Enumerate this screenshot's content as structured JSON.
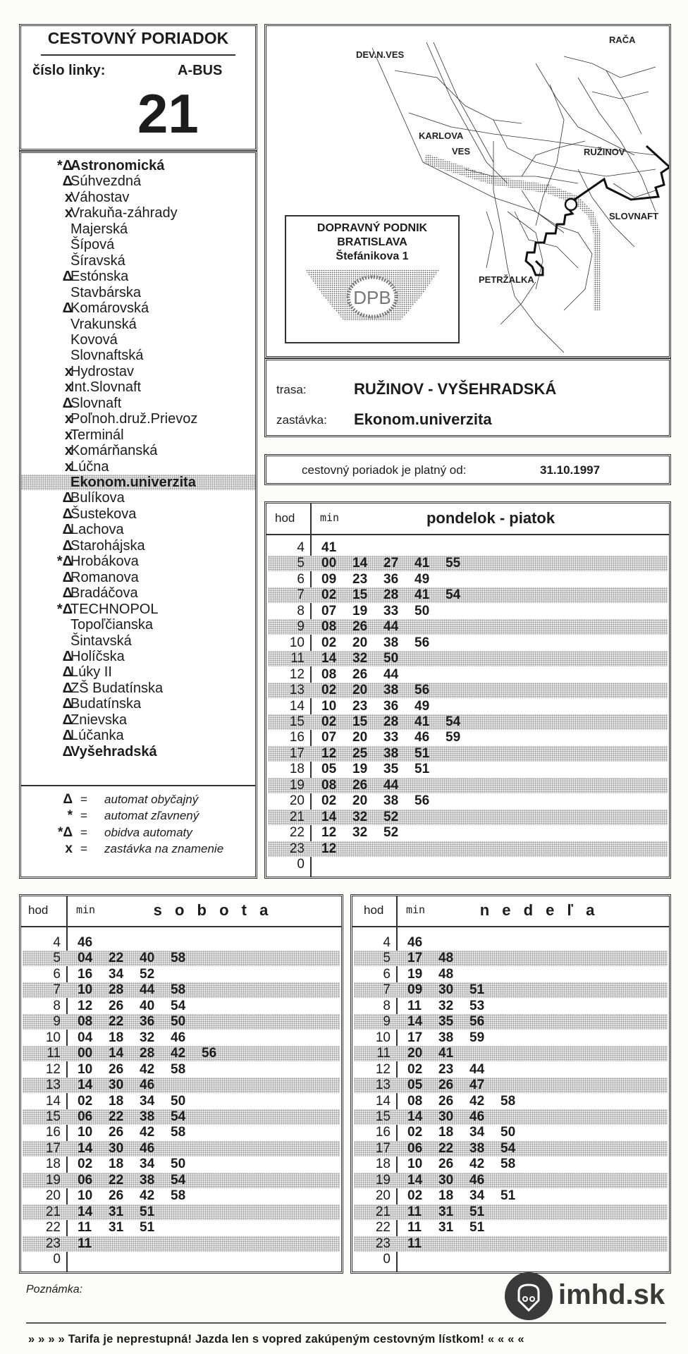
{
  "header": {
    "title": "CESTOVNÝ PORIADOK",
    "line_label": "číslo linky:",
    "line_type": "A-BUS",
    "line_number": "21"
  },
  "stops": [
    {
      "marks": "*Δ",
      "name": "Astronomická",
      "bold": true
    },
    {
      "marks": "Δ",
      "name": "Súhvezdná"
    },
    {
      "marks": "x",
      "name": "Váhostav"
    },
    {
      "marks": "x",
      "name": "Vrakuňa-záhrady"
    },
    {
      "marks": "",
      "name": "Majerská"
    },
    {
      "marks": "",
      "name": "Šípová"
    },
    {
      "marks": "",
      "name": "Šíravská"
    },
    {
      "marks": "Δ",
      "name": "Estónska"
    },
    {
      "marks": "",
      "name": "Stavbárska"
    },
    {
      "marks": "Δ",
      "name": "Komárovská"
    },
    {
      "marks": "",
      "name": "Vrakunská"
    },
    {
      "marks": "",
      "name": "Kovová"
    },
    {
      "marks": "",
      "name": "Slovnaftská"
    },
    {
      "marks": "x",
      "name": "Hydrostav"
    },
    {
      "marks": "x",
      "name": "Int.Slovnaft"
    },
    {
      "marks": "Δ",
      "name": "Slovnaft"
    },
    {
      "marks": "x",
      "name": "Poľnoh.druž.Prievoz"
    },
    {
      "marks": "x",
      "name": "Terminál"
    },
    {
      "marks": "x",
      "name": "Komárňanská"
    },
    {
      "marks": "x",
      "name": "Lúčna"
    },
    {
      "marks": "",
      "name": "Ekonom.univerzita",
      "bold": true,
      "current": true
    },
    {
      "marks": "Δ",
      "name": "Bulíkova"
    },
    {
      "marks": "Δ",
      "name": "Šustekova"
    },
    {
      "marks": "Δ",
      "name": "Lachova"
    },
    {
      "marks": "Δ",
      "name": "Starohájska"
    },
    {
      "marks": "*Δ",
      "name": "Hrobákova"
    },
    {
      "marks": "Δ",
      "name": "Romanova"
    },
    {
      "marks": "Δ",
      "name": "Bradáčova"
    },
    {
      "marks": "*Δ",
      "name": "TECHNOPOL"
    },
    {
      "marks": "",
      "name": "Topoľčianska"
    },
    {
      "marks": "",
      "name": "Šintavská"
    },
    {
      "marks": "Δ",
      "name": "Holíčska"
    },
    {
      "marks": "Δ",
      "name": "Lúky  II"
    },
    {
      "marks": "Δ",
      "name": "ZŠ  Budatínska"
    },
    {
      "marks": "Δ",
      "name": "Budatínska"
    },
    {
      "marks": "Δ",
      "name": "Znievska"
    },
    {
      "marks": "Δ",
      "name": "Lúčanka"
    },
    {
      "marks": "Δ",
      "name": "Vyšehradská",
      "bold": true
    }
  ],
  "legend": [
    {
      "sym": "Δ",
      "text": "automat  obyčajný"
    },
    {
      "sym": "*",
      "text": "automat  zľavnený"
    },
    {
      "sym": "*Δ",
      "text": "obidva  automaty"
    },
    {
      "sym": "x",
      "text": "zastávka  na  znamenie"
    }
  ],
  "legend_eq": "=",
  "map": {
    "labels": [
      "DEV.N.VES",
      "RAČA",
      "KARLOVA",
      "VES",
      "RUŽINOV",
      "SLOVNAFT",
      "PETRŽALKA"
    ],
    "company": [
      "DOPRAVNÝ  PODNIK",
      "BRATISLAVA",
      "Štefánikova  1"
    ],
    "logo_text": "DPB",
    "route_color": "#111111"
  },
  "route": {
    "route_label": "trasa:",
    "route_value": "RUŽINOV  -  VYŠEHRADSKÁ",
    "stop_label": "zastávka:",
    "stop_value": "Ekonom.univerzita"
  },
  "validity": {
    "label": "cestovný  poriadok  je  platný  od:",
    "date": "31.10.1997"
  },
  "timetables": {
    "hod_label": "hod",
    "min_label": "min",
    "weekday": {
      "title": "pondelok  -  piatok",
      "rows": [
        {
          "h": "4",
          "m": [
            "41"
          ]
        },
        {
          "h": "5",
          "m": [
            "00",
            "14",
            "27",
            "41",
            "55"
          ]
        },
        {
          "h": "6",
          "m": [
            "09",
            "23",
            "36",
            "49"
          ]
        },
        {
          "h": "7",
          "m": [
            "02",
            "15",
            "28",
            "41",
            "54"
          ]
        },
        {
          "h": "8",
          "m": [
            "07",
            "19",
            "33",
            "50"
          ]
        },
        {
          "h": "9",
          "m": [
            "08",
            "26",
            "44"
          ]
        },
        {
          "h": "10",
          "m": [
            "02",
            "20",
            "38",
            "56"
          ]
        },
        {
          "h": "11",
          "m": [
            "14",
            "32",
            "50"
          ]
        },
        {
          "h": "12",
          "m": [
            "08",
            "26",
            "44"
          ]
        },
        {
          "h": "13",
          "m": [
            "02",
            "20",
            "38",
            "56"
          ]
        },
        {
          "h": "14",
          "m": [
            "10",
            "23",
            "36",
            "49"
          ]
        },
        {
          "h": "15",
          "m": [
            "02",
            "15",
            "28",
            "41",
            "54"
          ]
        },
        {
          "h": "16",
          "m": [
            "07",
            "20",
            "33",
            "46",
            "59"
          ]
        },
        {
          "h": "17",
          "m": [
            "12",
            "25",
            "38",
            "51"
          ]
        },
        {
          "h": "18",
          "m": [
            "05",
            "19",
            "35",
            "51"
          ]
        },
        {
          "h": "19",
          "m": [
            "08",
            "26",
            "44"
          ]
        },
        {
          "h": "20",
          "m": [
            "02",
            "20",
            "38",
            "56"
          ]
        },
        {
          "h": "21",
          "m": [
            "14",
            "32",
            "52"
          ]
        },
        {
          "h": "22",
          "m": [
            "12",
            "32",
            "52"
          ]
        },
        {
          "h": "23",
          "m": [
            "12"
          ]
        },
        {
          "h": "0",
          "m": []
        }
      ]
    },
    "saturday": {
      "title": "s o b o t a",
      "rows": [
        {
          "h": "4",
          "m": [
            "46"
          ]
        },
        {
          "h": "5",
          "m": [
            "04",
            "22",
            "40",
            "58"
          ]
        },
        {
          "h": "6",
          "m": [
            "16",
            "34",
            "52"
          ]
        },
        {
          "h": "7",
          "m": [
            "10",
            "28",
            "44",
            "58"
          ]
        },
        {
          "h": "8",
          "m": [
            "12",
            "26",
            "40",
            "54"
          ]
        },
        {
          "h": "9",
          "m": [
            "08",
            "22",
            "36",
            "50"
          ]
        },
        {
          "h": "10",
          "m": [
            "04",
            "18",
            "32",
            "46"
          ]
        },
        {
          "h": "11",
          "m": [
            "00",
            "14",
            "28",
            "42",
            "56"
          ]
        },
        {
          "h": "12",
          "m": [
            "10",
            "26",
            "42",
            "58"
          ]
        },
        {
          "h": "13",
          "m": [
            "14",
            "30",
            "46"
          ]
        },
        {
          "h": "14",
          "m": [
            "02",
            "18",
            "34",
            "50"
          ]
        },
        {
          "h": "15",
          "m": [
            "06",
            "22",
            "38",
            "54"
          ]
        },
        {
          "h": "16",
          "m": [
            "10",
            "26",
            "42",
            "58"
          ]
        },
        {
          "h": "17",
          "m": [
            "14",
            "30",
            "46"
          ]
        },
        {
          "h": "18",
          "m": [
            "02",
            "18",
            "34",
            "50"
          ]
        },
        {
          "h": "19",
          "m": [
            "06",
            "22",
            "38",
            "54"
          ]
        },
        {
          "h": "20",
          "m": [
            "10",
            "26",
            "42",
            "58"
          ]
        },
        {
          "h": "21",
          "m": [
            "14",
            "31",
            "51"
          ]
        },
        {
          "h": "22",
          "m": [
            "11",
            "31",
            "51"
          ]
        },
        {
          "h": "23",
          "m": [
            "11"
          ]
        },
        {
          "h": "0",
          "m": []
        }
      ]
    },
    "sunday": {
      "title": "n e d e ľ a",
      "rows": [
        {
          "h": "4",
          "m": [
            "46"
          ]
        },
        {
          "h": "5",
          "m": [
            "17",
            "48"
          ]
        },
        {
          "h": "6",
          "m": [
            "19",
            "48"
          ]
        },
        {
          "h": "7",
          "m": [
            "09",
            "30",
            "51"
          ]
        },
        {
          "h": "8",
          "m": [
            "11",
            "32",
            "53"
          ]
        },
        {
          "h": "9",
          "m": [
            "14",
            "35",
            "56"
          ]
        },
        {
          "h": "10",
          "m": [
            "17",
            "38",
            "59"
          ]
        },
        {
          "h": "11",
          "m": [
            "20",
            "41"
          ]
        },
        {
          "h": "12",
          "m": [
            "02",
            "23",
            "44"
          ]
        },
        {
          "h": "13",
          "m": [
            "05",
            "26",
            "47"
          ]
        },
        {
          "h": "14",
          "m": [
            "08",
            "26",
            "42",
            "58"
          ]
        },
        {
          "h": "15",
          "m": [
            "14",
            "30",
            "46"
          ]
        },
        {
          "h": "16",
          "m": [
            "02",
            "18",
            "34",
            "50"
          ]
        },
        {
          "h": "17",
          "m": [
            "06",
            "22",
            "38",
            "54"
          ]
        },
        {
          "h": "18",
          "m": [
            "10",
            "26",
            "42",
            "58"
          ]
        },
        {
          "h": "19",
          "m": [
            "14",
            "30",
            "46"
          ]
        },
        {
          "h": "20",
          "m": [
            "02",
            "18",
            "34",
            "51"
          ]
        },
        {
          "h": "21",
          "m": [
            "11",
            "31",
            "51"
          ]
        },
        {
          "h": "22",
          "m": [
            "11",
            "31",
            "51"
          ]
        },
        {
          "h": "23",
          "m": [
            "11"
          ]
        },
        {
          "h": "0",
          "m": []
        }
      ]
    }
  },
  "footer": {
    "note_label": "Poznámka:",
    "brand": "imhd.sk",
    "brand_color": "#3a3a3a",
    "tariff_text": "» » » »  Tarifa je neprestupná! Jazda len s vopred zakúpeným cestovným lístkom!  « « « «"
  }
}
